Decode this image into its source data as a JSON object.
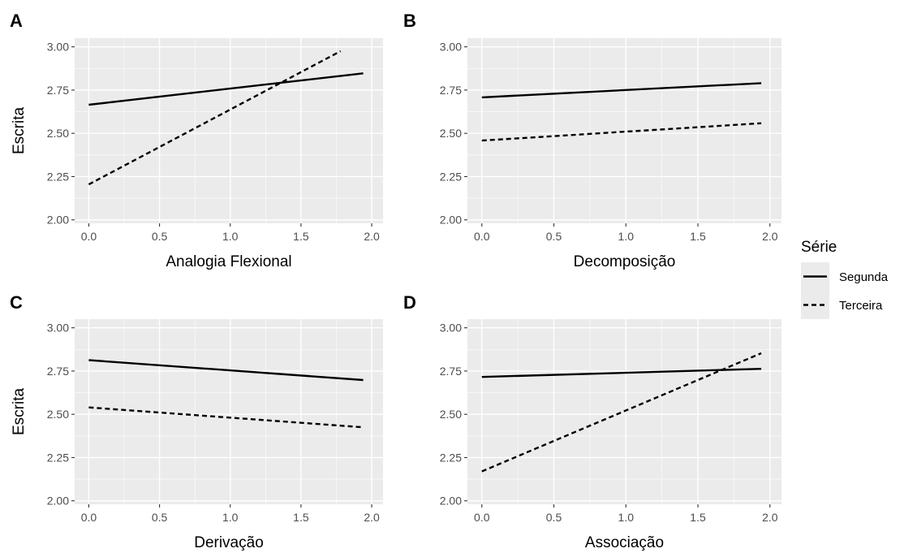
{
  "chart_data": [
    {
      "type": "line",
      "tag": "A",
      "xlabel": "Analogia Flexional",
      "ylabel": "Escrita",
      "xlim": [
        -0.1,
        2.08
      ],
      "ylim": [
        1.98,
        3.05
      ],
      "xticks": [
        0.0,
        0.5,
        1.0,
        1.5,
        2.0
      ],
      "xtick_labels": [
        "0.0",
        "0.5",
        "1.0",
        "1.5",
        "2.0"
      ],
      "yticks": [
        2.0,
        2.25,
        2.5,
        2.75,
        3.0
      ],
      "ytick_labels": [
        "2.00",
        "2.25",
        "2.50",
        "2.75",
        "3.00"
      ],
      "grid": true,
      "series": [
        {
          "name": "Segunda",
          "style": "solid",
          "x": [
            0.0,
            1.94
          ],
          "y": [
            2.665,
            2.847
          ]
        },
        {
          "name": "Terceira",
          "style": "dashed",
          "x": [
            0.0,
            1.78
          ],
          "y": [
            2.205,
            2.975
          ]
        }
      ]
    },
    {
      "type": "line",
      "tag": "B",
      "xlabel": "Decomposição",
      "ylabel": "",
      "xlim": [
        -0.1,
        2.08
      ],
      "ylim": [
        1.98,
        3.05
      ],
      "xticks": [
        0.0,
        0.5,
        1.0,
        1.5,
        2.0
      ],
      "xtick_labels": [
        "0.0",
        "0.5",
        "1.0",
        "1.5",
        "2.0"
      ],
      "yticks": [
        2.0,
        2.25,
        2.5,
        2.75,
        3.0
      ],
      "ytick_labels": [
        "2.00",
        "2.25",
        "2.50",
        "2.75",
        "3.00"
      ],
      "grid": true,
      "series": [
        {
          "name": "Segunda",
          "style": "solid",
          "x": [
            0.0,
            1.94
          ],
          "y": [
            2.708,
            2.79
          ]
        },
        {
          "name": "Terceira",
          "style": "dashed",
          "x": [
            0.0,
            1.94
          ],
          "y": [
            2.458,
            2.558
          ]
        }
      ]
    },
    {
      "type": "line",
      "tag": "C",
      "xlabel": "Derivação",
      "ylabel": "Escrita",
      "xlim": [
        -0.1,
        2.08
      ],
      "ylim": [
        1.98,
        3.05
      ],
      "xticks": [
        0.0,
        0.5,
        1.0,
        1.5,
        2.0
      ],
      "xtick_labels": [
        "0.0",
        "0.5",
        "1.0",
        "1.5",
        "2.0"
      ],
      "yticks": [
        2.0,
        2.25,
        2.5,
        2.75,
        3.0
      ],
      "ytick_labels": [
        "2.00",
        "2.25",
        "2.50",
        "2.75",
        "3.00"
      ],
      "grid": true,
      "series": [
        {
          "name": "Segunda",
          "style": "solid",
          "x": [
            0.0,
            1.94
          ],
          "y": [
            2.813,
            2.698
          ]
        },
        {
          "name": "Terceira",
          "style": "dashed",
          "x": [
            0.0,
            1.94
          ],
          "y": [
            2.54,
            2.425
          ]
        }
      ]
    },
    {
      "type": "line",
      "tag": "D",
      "xlabel": "Associação",
      "ylabel": "",
      "xlim": [
        -0.1,
        2.08
      ],
      "ylim": [
        1.98,
        3.05
      ],
      "xticks": [
        0.0,
        0.5,
        1.0,
        1.5,
        2.0
      ],
      "xtick_labels": [
        "0.0",
        "0.5",
        "1.0",
        "1.5",
        "2.0"
      ],
      "yticks": [
        2.0,
        2.25,
        2.5,
        2.75,
        3.0
      ],
      "ytick_labels": [
        "2.00",
        "2.25",
        "2.50",
        "2.75",
        "3.00"
      ],
      "grid": true,
      "series": [
        {
          "name": "Segunda",
          "style": "solid",
          "x": [
            0.0,
            1.94
          ],
          "y": [
            2.716,
            2.763
          ]
        },
        {
          "name": "Terceira",
          "style": "dashed",
          "x": [
            0.0,
            1.94
          ],
          "y": [
            2.17,
            2.853
          ]
        }
      ]
    }
  ],
  "legend": {
    "title": "Série",
    "placement": "right",
    "items": [
      {
        "label": "Segunda",
        "style": "solid"
      },
      {
        "label": "Terceira",
        "style": "dashed"
      }
    ]
  },
  "colors": {
    "panel_background": "#ebebeb",
    "grid": "#ffffff",
    "line": "#000000",
    "tick_text": "#4d4d4d"
  }
}
